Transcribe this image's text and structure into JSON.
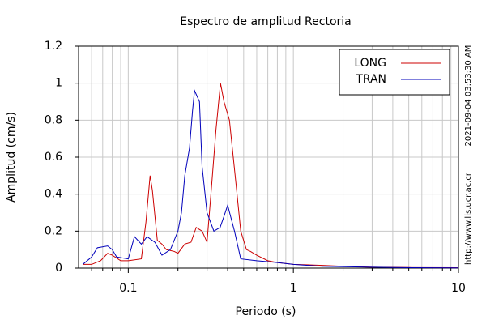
{
  "chart_data": {
    "type": "line",
    "title": "Espectro de amplitud Rectoria",
    "xlabel": "Periodo (s)",
    "ylabel": "Amplitud (cm/s)",
    "side_texts": [
      "2021-09-04 03:53:30 AM",
      "http://www.lis.ucr.ac.cr"
    ],
    "xscale": "log",
    "xlim": [
      0.05,
      10
    ],
    "ylim": [
      0,
      1.2
    ],
    "xticks": [
      0.1,
      1,
      10
    ],
    "xminorticks": [
      0.06,
      0.07,
      0.08,
      0.09,
      0.2,
      0.3,
      0.4,
      0.5,
      0.6,
      0.7,
      0.8,
      0.9,
      2,
      3,
      4,
      5,
      6,
      7,
      8,
      9
    ],
    "yticks": [
      0,
      0.2,
      0.4,
      0.6,
      0.8,
      1,
      1.2
    ],
    "grid": true,
    "legend": "upper right",
    "series": [
      {
        "name": "LONG",
        "color": "#cc0000",
        "x": [
          0.053,
          0.06,
          0.068,
          0.075,
          0.08,
          0.09,
          0.1,
          0.12,
          0.128,
          0.1356,
          0.14,
          0.15,
          0.16,
          0.17,
          0.19,
          0.2,
          0.22,
          0.24,
          0.258,
          0.28,
          0.3,
          0.32,
          0.34,
          0.362,
          0.38,
          0.41,
          0.45,
          0.48,
          0.52,
          0.55,
          0.6,
          0.7,
          0.8,
          1,
          1.5,
          2,
          3,
          5,
          10
        ],
        "values": [
          0.02,
          0.02,
          0.04,
          0.08,
          0.07,
          0.04,
          0.04,
          0.05,
          0.25,
          0.5,
          0.42,
          0.15,
          0.13,
          0.1,
          0.09,
          0.08,
          0.13,
          0.14,
          0.22,
          0.2,
          0.14,
          0.45,
          0.75,
          1.0,
          0.9,
          0.8,
          0.45,
          0.2,
          0.1,
          0.09,
          0.07,
          0.04,
          0.03,
          0.02,
          0.015,
          0.01,
          0.005,
          0.003,
          0.002
        ]
      },
      {
        "name": "TRAN",
        "color": "#0000bb",
        "x": [
          0.053,
          0.06,
          0.065,
          0.075,
          0.08,
          0.085,
          0.1,
          0.109,
          0.12,
          0.13,
          0.145,
          0.16,
          0.18,
          0.2,
          0.21,
          0.22,
          0.235,
          0.245,
          0.252,
          0.27,
          0.28,
          0.3,
          0.33,
          0.36,
          0.38,
          0.4,
          0.44,
          0.48,
          0.6,
          0.8,
          1,
          1.5,
          3,
          5,
          10
        ],
        "values": [
          0.02,
          0.06,
          0.11,
          0.12,
          0.1,
          0.06,
          0.05,
          0.17,
          0.13,
          0.17,
          0.14,
          0.07,
          0.1,
          0.2,
          0.3,
          0.5,
          0.65,
          0.85,
          0.96,
          0.9,
          0.55,
          0.3,
          0.2,
          0.22,
          0.28,
          0.34,
          0.2,
          0.05,
          0.04,
          0.03,
          0.02,
          0.01,
          0.005,
          0.002,
          0.001
        ]
      }
    ]
  }
}
